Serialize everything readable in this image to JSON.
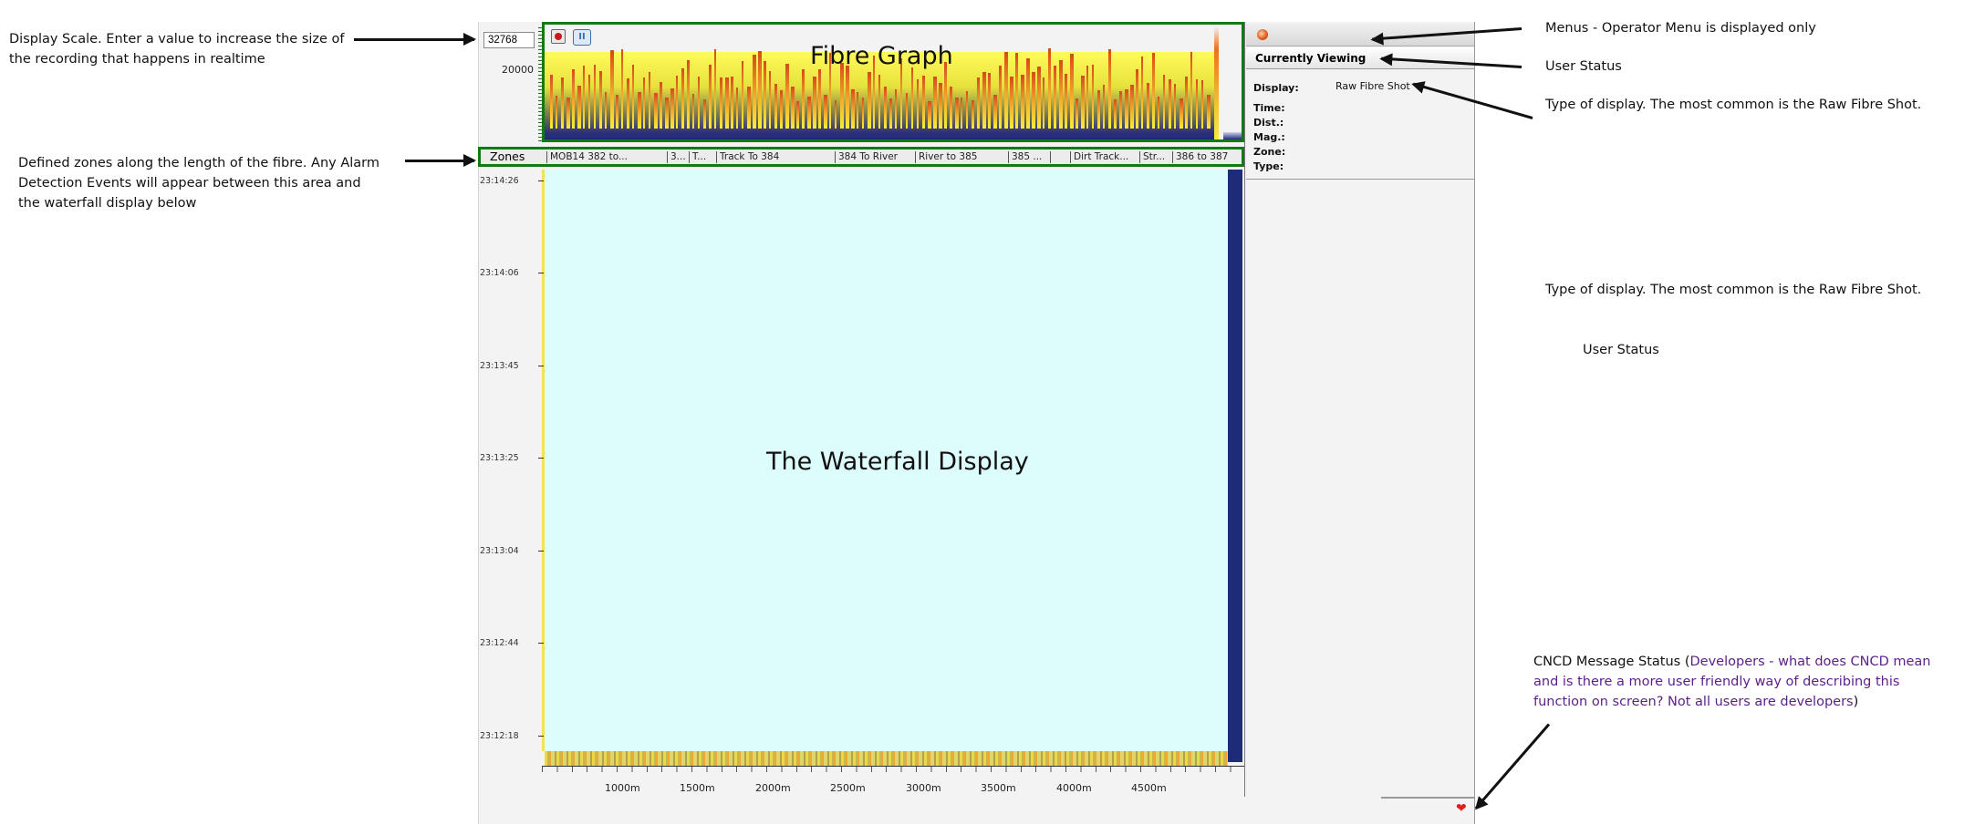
{
  "annotations": {
    "display_scale": "Display Scale. Enter a value to increase the size of the recording that happens in realtime",
    "zones": "Defined zones along the length of the fibre. Any Alarm Detection Events will appear between this area and the waterfall display below",
    "menus": "Menus - Operator Menu is displayed only",
    "user_status": "User Status",
    "display_type": "Type of display. The most common is the Raw Fibre Shot.",
    "display_type_repeat": "Type of display. The most common is the Raw Fibre Shot.",
    "user_status_repeat": "User Status",
    "cncd_prefix": "CNCD Message Status (",
    "cncd_question": "Developers - what does CNCD mean and is there a more user friendly way of describing this function on screen? Not all users are developers",
    "cncd_suffix": ")"
  },
  "fibre_graph": {
    "title": "Fibre Graph",
    "scale_value": "32768",
    "scale_tick": "20000"
  },
  "zones": {
    "label": "Zones",
    "segments": [
      "MOB14 382 to...",
      "3...",
      "T...",
      "Track To 384",
      "384 To River",
      "River to 385",
      "385 ...",
      "",
      "Dirt Track...",
      "Str...",
      "386 to 387"
    ]
  },
  "waterfall": {
    "title": "The Waterfall Display",
    "times": [
      "23:14:26",
      "23:14:06",
      "23:13:45",
      "23:13:25",
      "23:13:04",
      "23:12:44",
      "23:12:18"
    ]
  },
  "x_axis": {
    "labels": [
      "1000m",
      "1500m",
      "2000m",
      "2500m",
      "3000m",
      "3500m",
      "4000m",
      "4500m"
    ]
  },
  "side_panel": {
    "currently_viewing": "Currently Viewing",
    "display_label": "Display:",
    "display_value": "Raw Fibre Shot",
    "time_label": "Time:",
    "dist_label": "Dist.:",
    "mag_label": "Mag.:",
    "zone_label": "Zone:",
    "type_label": "Type:"
  },
  "icons": {
    "record": "record-icon",
    "pause": "pause-icon",
    "menu": "menu-orb-icon",
    "cncd_status": "heart-icon"
  },
  "colors": {
    "highlight_box": "#127a12",
    "waterfall": "#ddfcfc",
    "question_text": "#5b1f8a"
  }
}
